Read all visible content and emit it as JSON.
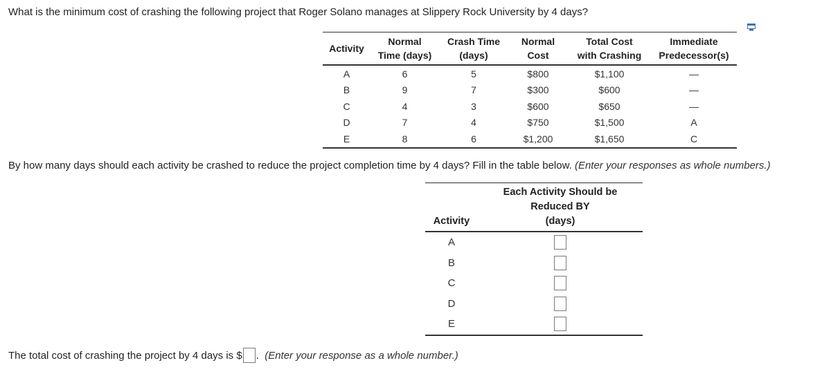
{
  "question": "What is the minimum cost of crashing the following project that Roger Solano manages at Slippery Rock University by 4 days?",
  "copy_icon": "copy-icon",
  "data_table": {
    "headers": [
      [
        "",
        "Normal"
      ],
      [
        "Crash Time",
        ""
      ],
      [
        "Normal",
        ""
      ],
      [
        "Total Cost",
        ""
      ],
      [
        "Immediate",
        ""
      ]
    ],
    "header_lines": {
      "activity": [
        "",
        "Activity"
      ],
      "normal_time": [
        "Normal",
        "Time (days)"
      ],
      "crash_time": [
        "Crash Time",
        "(days)"
      ],
      "normal_cost": [
        "Normal",
        "Cost"
      ],
      "total_cost": [
        "Total Cost",
        "with Crashing"
      ],
      "predecessor": [
        "Immediate",
        "Predecessor(s)"
      ]
    },
    "rows": [
      [
        "A",
        "6",
        "5",
        "$800",
        "$1,100",
        "—"
      ],
      [
        "B",
        "9",
        "7",
        "$300",
        "$600",
        "—"
      ],
      [
        "C",
        "4",
        "3",
        "$600",
        "$650",
        "—"
      ],
      [
        "D",
        "7",
        "4",
        "$750",
        "$1,500",
        "A"
      ],
      [
        "E",
        "8",
        "6",
        "$1,200",
        "$1,650",
        "C"
      ]
    ]
  },
  "instruction": {
    "main": "By how many days should each activity be crashed to reduce the project completion time by 4 days? Fill in the table below.",
    "hint": "(Enter your responses as whole numbers.)"
  },
  "answer_table": {
    "col1": "Activity",
    "col2_lines": [
      "Each Activity Should be",
      "Reduced BY",
      "(days)"
    ],
    "activities": [
      "A",
      "B",
      "C",
      "D",
      "E"
    ]
  },
  "total": {
    "prefix": "The total cost of crashing the project by 4 days is $",
    "suffix": ".",
    "hint": "(Enter your response as a whole number.)"
  }
}
